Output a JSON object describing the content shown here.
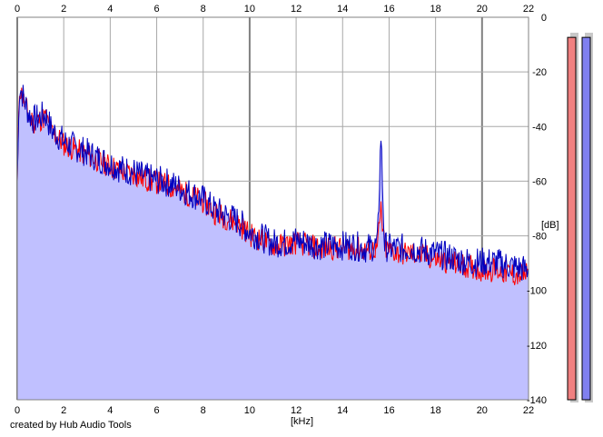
{
  "credit": "created by Hub Audio Tools",
  "chart_data": {
    "type": "area",
    "xlabel": "[kHz]",
    "ylabel": "[dB]",
    "xlim": [
      0,
      22
    ],
    "ylim": [
      -140,
      0
    ],
    "xticks": [
      0,
      2,
      4,
      6,
      8,
      10,
      12,
      14,
      16,
      18,
      20,
      22
    ],
    "yticks": [
      0,
      -20,
      -40,
      -60,
      -80,
      -100,
      -120,
      -140
    ],
    "grid": true,
    "series": [
      {
        "color": "#ff0000",
        "x": [
          0,
          0.1,
          0.2,
          0.35,
          0.5,
          0.7,
          1,
          1.2,
          1.5,
          1.8,
          2,
          2.5,
          3,
          3.5,
          4,
          4.5,
          5,
          5.5,
          6,
          6.5,
          7,
          7.5,
          8,
          8.5,
          9,
          9.5,
          10,
          10.5,
          11,
          11.5,
          12,
          12.5,
          13,
          13.5,
          14,
          14.5,
          15,
          15.5,
          15.65,
          15.8,
          16,
          16.5,
          17,
          17.5,
          18,
          18.5,
          19,
          19.5,
          20,
          20.5,
          21,
          21.5,
          22
        ],
        "values": [
          -60,
          -25,
          -28,
          -32,
          -36,
          -38,
          -37,
          -36,
          -42,
          -44,
          -46,
          -48,
          -50,
          -52,
          -54,
          -56,
          -57,
          -59,
          -60,
          -61,
          -63,
          -65,
          -67,
          -71,
          -73,
          -75,
          -79,
          -81,
          -83,
          -83,
          -82,
          -83,
          -84,
          -84,
          -84,
          -84,
          -85,
          -84,
          -70,
          -84,
          -85,
          -86,
          -86,
          -87,
          -88,
          -89,
          -90,
          -91,
          -92,
          -92,
          -93,
          -94,
          -94
        ]
      },
      {
        "color": "#0000c0",
        "x": [
          0,
          0.1,
          0.2,
          0.35,
          0.5,
          0.7,
          1,
          1.2,
          1.5,
          1.8,
          2,
          2.5,
          3,
          3.5,
          4,
          4.5,
          5,
          5.5,
          6,
          6.5,
          7,
          7.5,
          8,
          8.5,
          9,
          9.5,
          10,
          10.5,
          11,
          11.5,
          12,
          12.5,
          13,
          13.5,
          14,
          14.5,
          15,
          15.5,
          15.65,
          15.8,
          16,
          16.5,
          17,
          17.5,
          18,
          18.5,
          19,
          19.5,
          20,
          20.5,
          21,
          21.5,
          22
        ],
        "values": [
          -60,
          -24,
          -27,
          -31,
          -35,
          -37,
          -36,
          -35,
          -41,
          -43,
          -45,
          -47,
          -49,
          -51,
          -53,
          -55,
          -56,
          -58,
          -59,
          -60,
          -62,
          -64,
          -66,
          -70,
          -72,
          -74,
          -78,
          -80,
          -82,
          -82,
          -81,
          -82,
          -83,
          -83,
          -83,
          -83,
          -84,
          -83,
          -42,
          -83,
          -84,
          -84,
          -84,
          -85,
          -86,
          -87,
          -88,
          -89,
          -89,
          -89,
          -90,
          -91,
          -92
        ]
      }
    ],
    "meters": [
      {
        "color": "#f08080",
        "level": 0.98
      },
      {
        "color": "#8080f0",
        "level": 0.98
      }
    ]
  }
}
